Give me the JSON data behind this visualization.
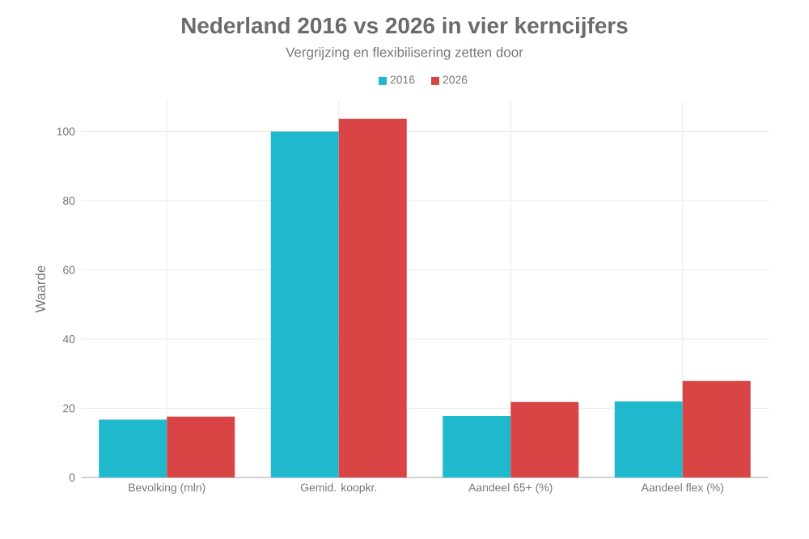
{
  "chart_data": {
    "type": "bar",
    "title": "Nederland 2016 vs 2026 in vier kerncijfers",
    "subtitle": "Vergrijzing en flexibilisering zetten door",
    "ylabel": "Waarde",
    "categories": [
      "Bevolking (mln)",
      "Gemid. koopkr.",
      "Aandeel 65+ (%)",
      "Aandeel flex (%)"
    ],
    "series": [
      {
        "name": "2016",
        "color": "#1fb8cc",
        "values": [
          16.7,
          100,
          17.8,
          22
        ]
      },
      {
        "name": "2026",
        "color": "#d94545",
        "values": [
          17.6,
          103.7,
          21.8,
          27.9
        ]
      }
    ],
    "ylim": [
      0,
      109
    ],
    "yticks": [
      0,
      20,
      40,
      60,
      80,
      100
    ],
    "grid": true,
    "legend": "top"
  }
}
